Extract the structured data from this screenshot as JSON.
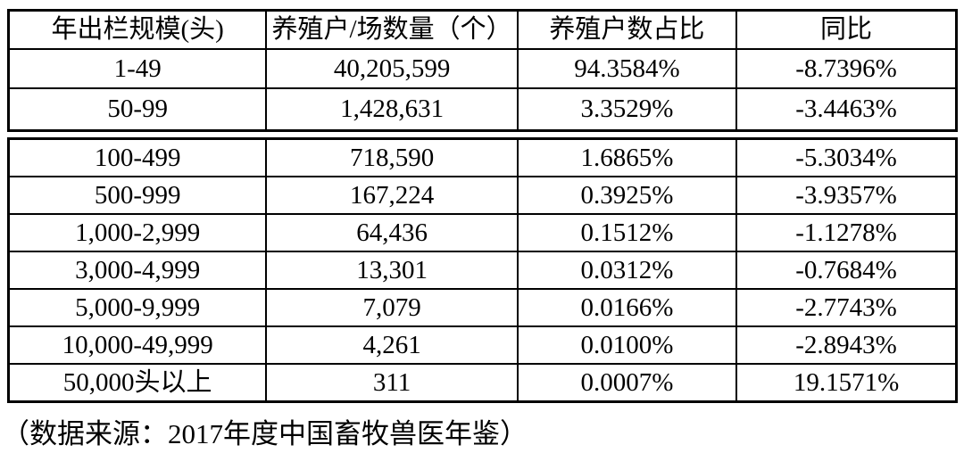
{
  "table": {
    "columns": [
      "年出栏规模(头)",
      "养殖户/场数量（个）",
      "养殖户数占比",
      "同比"
    ],
    "rows": [
      [
        "1-49",
        "40,205,599",
        "94.3584%",
        "-8.7396%"
      ],
      [
        "50-99",
        "1,428,631",
        "3.3529%",
        "-3.4463%"
      ],
      [
        "100-499",
        "718,590",
        "1.6865%",
        "-5.3034%"
      ],
      [
        "500-999",
        "167,224",
        "0.3925%",
        "-3.9357%"
      ],
      [
        "1,000-2,999",
        "64,436",
        "0.1512%",
        "-1.1278%"
      ],
      [
        "3,000-4,999",
        "13,301",
        "0.0312%",
        "-0.7684%"
      ],
      [
        "5,000-9,999",
        "7,079",
        "0.0166%",
        "-2.7743%"
      ],
      [
        "10,000-49,999",
        "4,261",
        "0.0100%",
        "-2.8943%"
      ],
      [
        "50,000头以上",
        "311",
        "0.0007%",
        "19.1571%"
      ]
    ]
  },
  "footer": {
    "source_note": "（数据来源：2017年度中国畜牧兽医年鉴）"
  },
  "colors": {
    "border": "#000000",
    "text": "#000000",
    "background": "#ffffff"
  }
}
